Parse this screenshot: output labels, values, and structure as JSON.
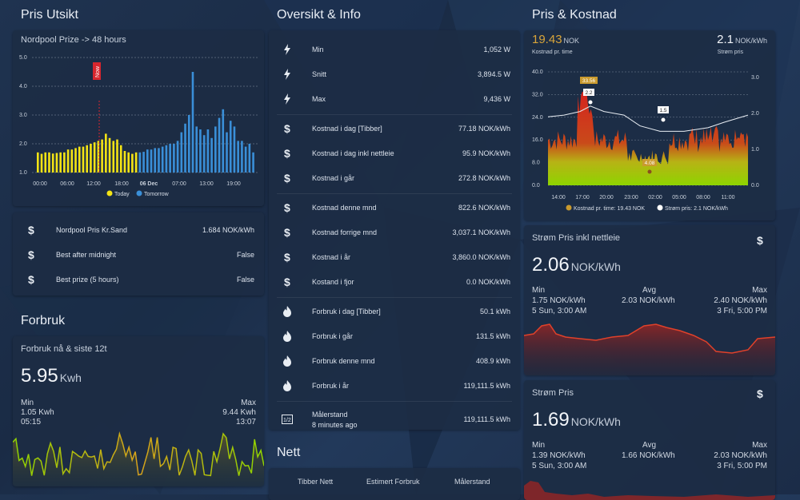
{
  "columns": {
    "left_title": "Pris Utsikt",
    "mid_title": "Oversikt & Info",
    "right_title": "Pris & Kostnad",
    "forbruk_title": "Forbruk",
    "nett_title": "Nett"
  },
  "nordpool_card": {
    "title": "Nordpool Prize -> 48 hours",
    "now_label": "Now",
    "legend_today": "Today",
    "legend_tomorrow": "Tomorrow",
    "colors": {
      "today": "#f4e415",
      "tomorrow": "#3a8fd8",
      "now": "#d8262e"
    }
  },
  "chart_data": [
    {
      "type": "bar",
      "title": "Nordpool Prize -> 48 hours",
      "ylim": [
        1.0,
        5.0
      ],
      "yticks": [
        "1.0",
        "2.0",
        "3.0",
        "4.0",
        "5.0"
      ],
      "xticks": [
        "00:00",
        "06:00",
        "12:00",
        "18:00",
        "06 Dec",
        "07:00",
        "13:00",
        "19:00"
      ],
      "series": [
        {
          "name": "Today",
          "values": [
            1.7,
            1.65,
            1.7,
            1.7,
            1.66,
            1.68,
            1.7,
            1.7,
            1.8,
            1.8,
            1.85,
            1.9,
            1.9,
            1.95,
            2.0,
            2.05,
            2.1,
            2.15,
            2.35,
            2.2,
            2.1,
            2.15,
            1.95,
            1.75,
            1.7,
            1.65,
            1.7
          ]
        },
        {
          "name": "Tomorrow",
          "values": [
            1.7,
            1.72,
            1.8,
            1.8,
            1.85,
            1.85,
            1.9,
            1.95,
            2.0,
            2.0,
            2.1,
            2.4,
            2.7,
            3.0,
            4.5,
            2.6,
            2.5,
            2.3,
            2.5,
            2.2,
            2.6,
            2.9,
            3.2,
            2.4,
            2.8,
            2.6,
            2.1,
            2.1,
            1.9,
            2.0,
            1.7
          ]
        }
      ]
    },
    {
      "type": "area",
      "title": "",
      "y_left": [
        "0.0",
        "8.0",
        "16.0",
        "24.0",
        "32.0",
        "40.0"
      ],
      "y_right": [
        "0.0",
        "1.0",
        "2.0",
        "3.0"
      ],
      "xticks": [
        "14:00",
        "17:00",
        "20:00",
        "23:00",
        "02:00",
        "05:00",
        "08:00",
        "11:00"
      ],
      "annotations": [
        "33.56",
        "2.2",
        "1.5",
        "4.08"
      ],
      "legend": [
        "Kostnad pr. time: 19.43 NOK",
        "Strøm pris: 2.1 NOK/kWh"
      ],
      "colors": {
        "cost_low": "#8ed400",
        "cost_high": "#d5241f",
        "price_line": "#e8edf3",
        "marker": "#c99a2e"
      }
    }
  ],
  "nordpool_info": {
    "rows": [
      {
        "label": "Nordpool Pris Kr.Sand",
        "value": "1.684 NOK/kWh"
      },
      {
        "label": "Best after midnight",
        "value": "False"
      },
      {
        "label": "Best prize (5 hours)",
        "value": "False"
      }
    ]
  },
  "forbruk_card": {
    "title": "Forbruk nå & siste 12t",
    "value": "5.95",
    "unit": "Kwh",
    "min_label": "Min",
    "min_value": "1.05 Kwh",
    "min_time": "05:15",
    "max_label": "Max",
    "max_value": "9.44 Kwh",
    "max_time": "13:07"
  },
  "overview": {
    "groups": [
      [
        {
          "icon": "bolt-icon",
          "label": "Min",
          "value": "1,052 W"
        },
        {
          "icon": "bolt-icon",
          "label": "Snitt",
          "value": "3,894.5 W"
        },
        {
          "icon": "bolt-icon",
          "label": "Max",
          "value": "9,436 W"
        }
      ],
      [
        {
          "icon": "dollar-icon",
          "label": "Kostnad i dag [Tibber]",
          "value": "77.18 NOK/kWh"
        },
        {
          "icon": "dollar-icon",
          "label": "Kostnad i dag inkl nettleie",
          "value": "95.9 NOK/kWh"
        },
        {
          "icon": "dollar-icon",
          "label": "Kostnad i går",
          "value": "272.8 NOK/kWh"
        }
      ],
      [
        {
          "icon": "dollar-icon",
          "label": "Kostnad denne mnd",
          "value": "822.6 NOK/kWh"
        },
        {
          "icon": "dollar-icon",
          "label": "Kostnad forrige mnd",
          "value": "3,037.1 NOK/kWh"
        },
        {
          "icon": "dollar-icon",
          "label": "Kostnad i år",
          "value": "3,860.0 NOK/kWh"
        },
        {
          "icon": "dollar-icon",
          "label": "Kostand i fjor",
          "value": "0.0 NOK/kWh"
        }
      ],
      [
        {
          "icon": "fire-icon",
          "label": "Forbruk i dag [Tibber]",
          "value": "50.1 kWh"
        },
        {
          "icon": "fire-icon",
          "label": "Forbruk i går",
          "value": "131.5 kWh"
        },
        {
          "icon": "fire-icon",
          "label": "Forbruk denne mnd",
          "value": "408.9 kWh"
        },
        {
          "icon": "fire-icon",
          "label": "Forbruk i år",
          "value": "119,111.5 kWh"
        }
      ]
    ],
    "meter": {
      "label": "Målerstand",
      "sub": "8 minutes ago",
      "value": "119,111.5 kWh"
    }
  },
  "nett_tabs": [
    "Tibber Nett",
    "Estimert Forbruk",
    "Målerstand"
  ],
  "pris_kostnad": {
    "cost_value": "19.43",
    "cost_unit": "NOK",
    "cost_label": "Kostnad pr. time",
    "price_value": "2.1",
    "price_unit": "NOK/kWh",
    "price_label": "Strøm pris"
  },
  "strom_nettleie": {
    "title": "Strøm Pris inkl nettleie",
    "value": "2.06",
    "unit": "NOK/kWh",
    "min_label": "Min",
    "min_value": "1.75 NOK/kWh",
    "min_time": "5 Sun, 3:00 AM",
    "avg_label": "Avg",
    "avg_value": "2.03 NOK/kWh",
    "max_label": "Max",
    "max_value": "2.40 NOK/kWh",
    "max_time": "3 Fri, 5:00 PM"
  },
  "strom_pris": {
    "title": "Strøm Pris",
    "value": "1.69",
    "unit": "NOK/kWh",
    "min_label": "Min",
    "min_value": "1.39 NOK/kWh",
    "min_time": "5 Sun, 3:00 AM",
    "avg_label": "Avg",
    "avg_value": "1.66 NOK/kWh",
    "max_label": "Max",
    "max_value": "2.03 NOK/kWh",
    "max_time": "3 Fri, 5:00 PM"
  }
}
